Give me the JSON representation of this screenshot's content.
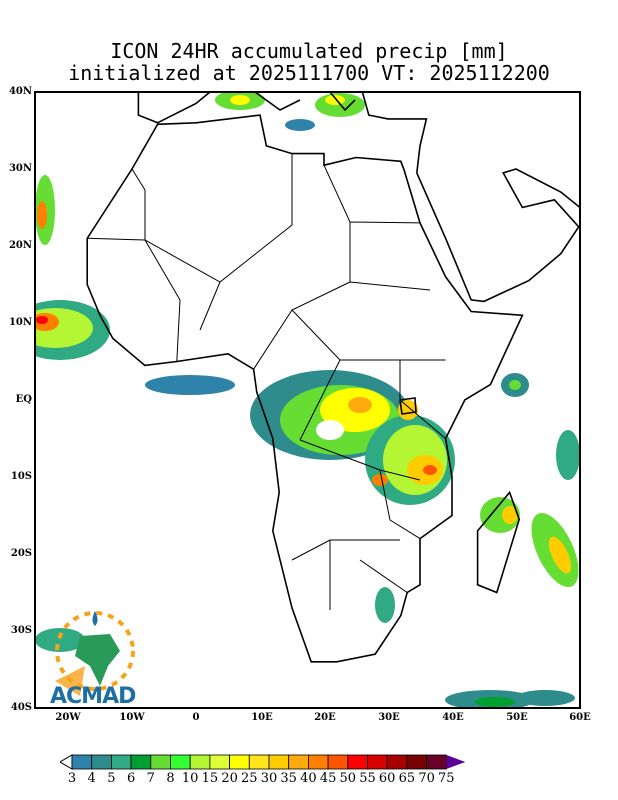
{
  "title": {
    "line1": "ICON 24HR accumulated precip [mm]",
    "line2": "initialized at 2025111700 VT: 2025112200"
  },
  "axes": {
    "lat_labels": [
      "40N",
      "30N",
      "20N",
      "10N",
      "EQ",
      "10S",
      "20S",
      "30S",
      "40S"
    ],
    "lon_labels": [
      "20W",
      "10W",
      "0",
      "10E",
      "20E",
      "30E",
      "40E",
      "50E",
      "60E"
    ]
  },
  "colorbar": {
    "levels": [
      "3",
      "4",
      "5",
      "6",
      "7",
      "8",
      "10",
      "15",
      "20",
      "25",
      "30",
      "35",
      "40",
      "45",
      "50",
      "55",
      "60",
      "65",
      "70",
      "75"
    ],
    "colors": [
      "#2f82aa",
      "#2e8c8c",
      "#30aa82",
      "#00a030",
      "#66dd33",
      "#33ff33",
      "#b4f534",
      "#ddff33",
      "#ffff00",
      "#ffe61a",
      "#ffcc00",
      "#ffaa0d",
      "#ff7f00",
      "#ff5500",
      "#ff0000",
      "#d80000",
      "#a80000",
      "#780000",
      "#6a0028",
      "#5a0099"
    ]
  },
  "logo": {
    "text": "ACMAD"
  }
}
